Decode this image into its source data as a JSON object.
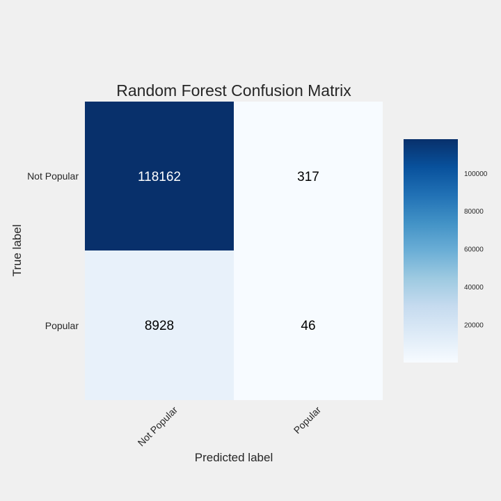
{
  "chart_data": {
    "type": "heatmap",
    "title": "Random Forest Confusion Matrix",
    "xlabel": "Predicted label",
    "ylabel": "True label",
    "x_categories": [
      "Not Popular",
      "Popular"
    ],
    "y_categories": [
      "Not Popular",
      "Popular"
    ],
    "values": [
      [
        118162,
        317
      ],
      [
        8928,
        46
      ]
    ],
    "colormap": "Blues",
    "color_range": [
      46,
      118162
    ],
    "colorbar_ticks": [
      20000,
      40000,
      60000,
      80000,
      100000
    ],
    "colorbar_tick_labels": [
      "20000",
      "40000",
      "60000",
      "80000",
      "100000"
    ],
    "grid": false
  }
}
